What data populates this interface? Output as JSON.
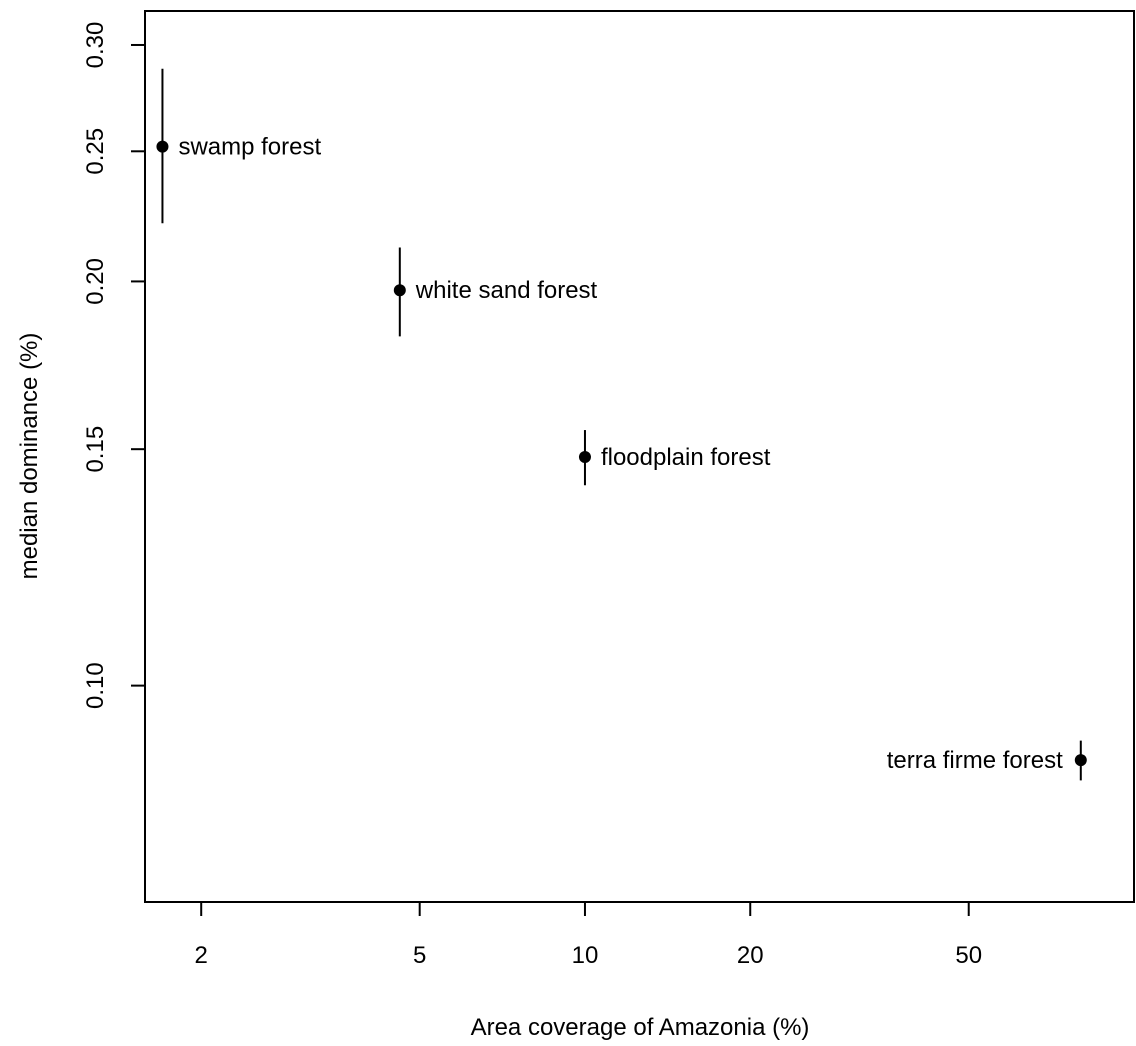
{
  "chart_data": {
    "type": "scatter",
    "title": "",
    "xlabel": "Area coverage of Amazonia (%)",
    "ylabel": "median dominance (%)",
    "x_scale": "log",
    "y_scale": "log",
    "xlim": [
      1.58,
      100
    ],
    "ylim": [
      0.069,
      0.318
    ],
    "x_ticks": [
      2,
      5,
      10,
      20,
      50
    ],
    "x_tick_labels": [
      "2",
      "5",
      "10",
      "20",
      "50"
    ],
    "y_ticks": [
      0.1,
      0.15,
      0.2,
      0.25,
      0.3
    ],
    "y_tick_labels": [
      "0.10",
      "0.15",
      "0.20",
      "0.25",
      "0.30"
    ],
    "grid": false,
    "legend": "none",
    "color": "#000000",
    "points": [
      {
        "label": "swamp forest",
        "x": 1.7,
        "y": 0.252,
        "y_low": 0.221,
        "y_high": 0.288,
        "label_side": "right"
      },
      {
        "label": "white sand forest",
        "x": 4.6,
        "y": 0.197,
        "y_low": 0.182,
        "y_high": 0.212,
        "label_side": "right"
      },
      {
        "label": "floodplain forest",
        "x": 10.0,
        "y": 0.148,
        "y_low": 0.141,
        "y_high": 0.155,
        "label_side": "right"
      },
      {
        "label": "terra firme forest",
        "x": 80.0,
        "y": 0.088,
        "y_low": 0.085,
        "y_high": 0.091,
        "label_side": "left"
      }
    ]
  }
}
